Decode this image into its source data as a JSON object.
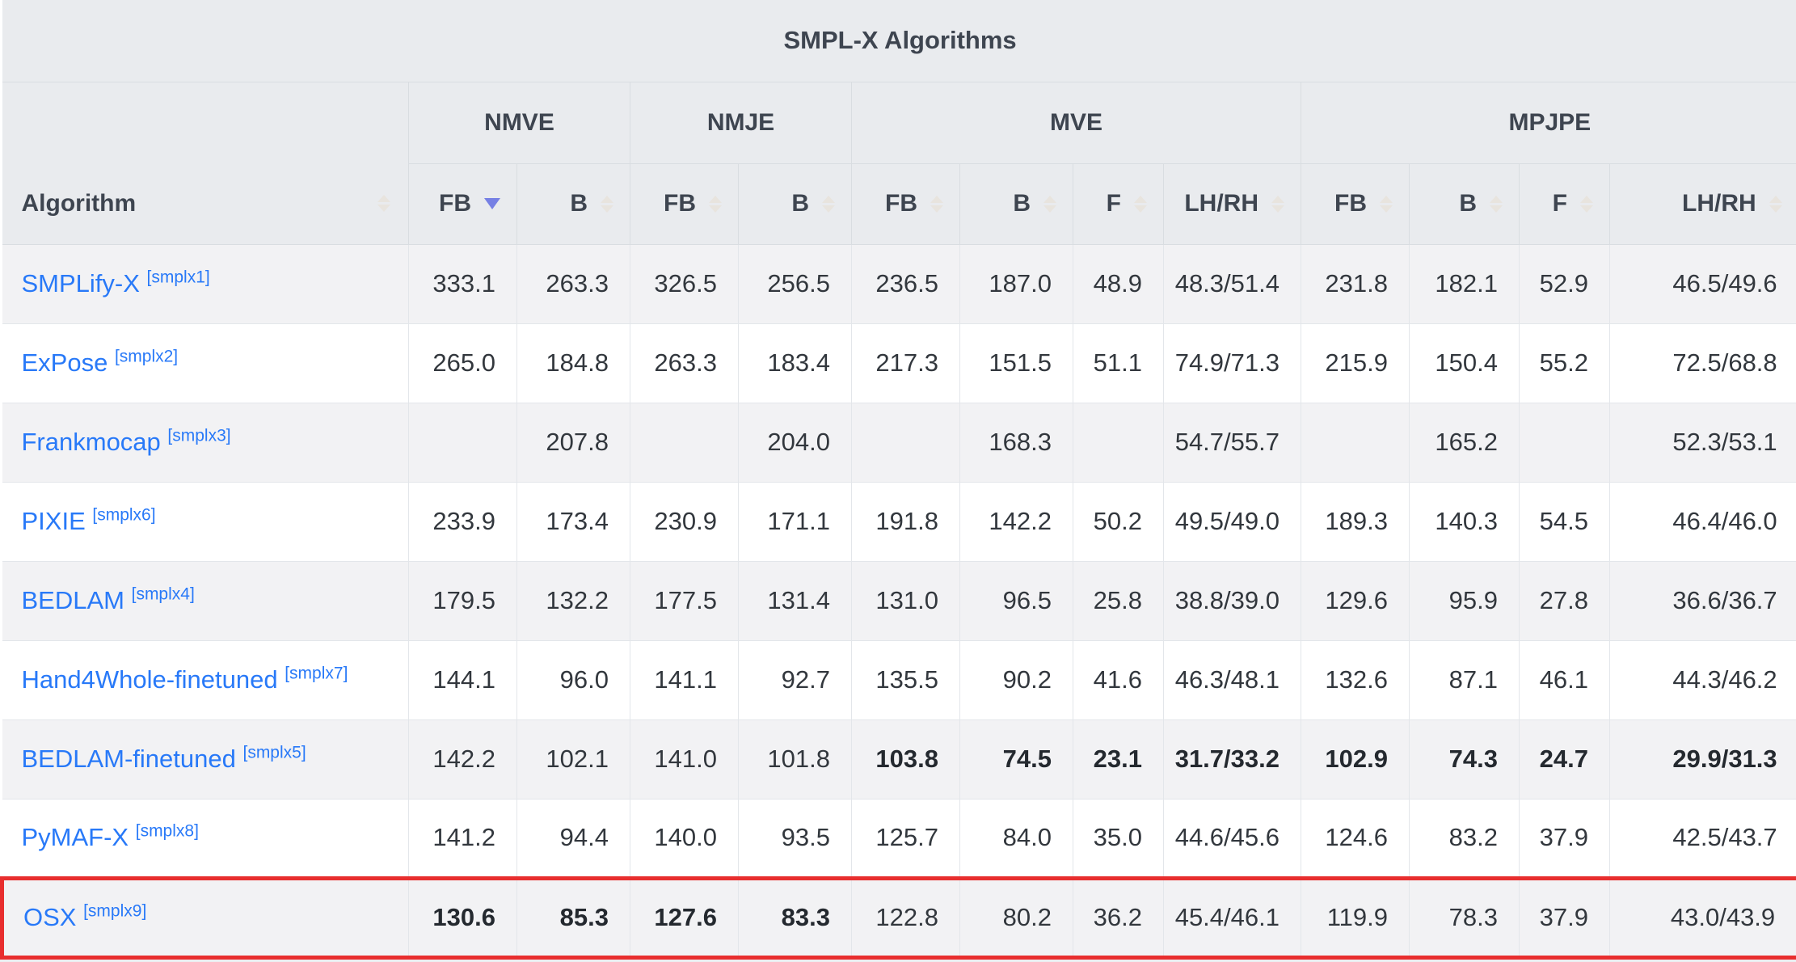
{
  "table": {
    "title": "SMPL-X Algorithms",
    "colors": {
      "header_bg": "#e9ebee",
      "row_odd_bg": "#f2f2f4",
      "row_even_bg": "#ffffff",
      "link_blue": "#2879f8",
      "sort_active": "#7680e4",
      "sort_inactive": "#e8e4de",
      "highlight_red": "#e82e2e"
    },
    "algorithm_header": {
      "label": "Algorithm"
    },
    "groups": [
      {
        "label": "NMVE",
        "span": 2
      },
      {
        "label": "NMJE",
        "span": 2
      },
      {
        "label": "MVE",
        "span": 4
      },
      {
        "label": "MPJPE",
        "span": 4
      }
    ],
    "columns": [
      {
        "group": "NMVE",
        "label": "FB",
        "sort": "desc"
      },
      {
        "group": "NMVE",
        "label": "B",
        "sort": "none"
      },
      {
        "group": "NMJE",
        "label": "FB",
        "sort": "none"
      },
      {
        "group": "NMJE",
        "label": "B",
        "sort": "none"
      },
      {
        "group": "MVE",
        "label": "FB",
        "sort": "none"
      },
      {
        "group": "MVE",
        "label": "B",
        "sort": "none"
      },
      {
        "group": "MVE",
        "label": "F",
        "sort": "none"
      },
      {
        "group": "MVE",
        "label": "LH/RH",
        "sort": "none"
      },
      {
        "group": "MPJPE",
        "label": "FB",
        "sort": "none"
      },
      {
        "group": "MPJPE",
        "label": "B",
        "sort": "none"
      },
      {
        "group": "MPJPE",
        "label": "F",
        "sort": "none"
      },
      {
        "group": "MPJPE",
        "label": "LH/RH",
        "sort": "none"
      }
    ],
    "rows": [
      {
        "name": "SMPLify-X",
        "cite": "[smplx1]",
        "highlight": false,
        "bold": [],
        "values": [
          "333.1",
          "263.3",
          "326.5",
          "256.5",
          "236.5",
          "187.0",
          "48.9",
          "48.3/51.4",
          "231.8",
          "182.1",
          "52.9",
          "46.5/49.6"
        ]
      },
      {
        "name": "ExPose",
        "cite": "[smplx2]",
        "highlight": false,
        "bold": [],
        "values": [
          "265.0",
          "184.8",
          "263.3",
          "183.4",
          "217.3",
          "151.5",
          "51.1",
          "74.9/71.3",
          "215.9",
          "150.4",
          "55.2",
          "72.5/68.8"
        ]
      },
      {
        "name": "Frankmocap",
        "cite": "[smplx3]",
        "highlight": false,
        "bold": [],
        "values": [
          "",
          "207.8",
          "",
          "204.0",
          "",
          "168.3",
          "",
          "54.7/55.7",
          "",
          "165.2",
          "",
          "52.3/53.1"
        ]
      },
      {
        "name": "PIXIE",
        "cite": "[smplx6]",
        "highlight": false,
        "bold": [],
        "values": [
          "233.9",
          "173.4",
          "230.9",
          "171.1",
          "191.8",
          "142.2",
          "50.2",
          "49.5/49.0",
          "189.3",
          "140.3",
          "54.5",
          "46.4/46.0"
        ]
      },
      {
        "name": "BEDLAM",
        "cite": "[smplx4]",
        "highlight": false,
        "bold": [],
        "values": [
          "179.5",
          "132.2",
          "177.5",
          "131.4",
          "131.0",
          "96.5",
          "25.8",
          "38.8/39.0",
          "129.6",
          "95.9",
          "27.8",
          "36.6/36.7"
        ]
      },
      {
        "name": "Hand4Whole-finetuned",
        "cite": "[smplx7]",
        "highlight": false,
        "bold": [],
        "values": [
          "144.1",
          "96.0",
          "141.1",
          "92.7",
          "135.5",
          "90.2",
          "41.6",
          "46.3/48.1",
          "132.6",
          "87.1",
          "46.1",
          "44.3/46.2"
        ]
      },
      {
        "name": "BEDLAM-finetuned",
        "cite": "[smplx5]",
        "highlight": false,
        "bold": [
          4,
          5,
          6,
          7,
          8,
          9,
          10,
          11
        ],
        "values": [
          "142.2",
          "102.1",
          "141.0",
          "101.8",
          "103.8",
          "74.5",
          "23.1",
          "31.7/33.2",
          "102.9",
          "74.3",
          "24.7",
          "29.9/31.3"
        ]
      },
      {
        "name": "PyMAF-X",
        "cite": "[smplx8]",
        "highlight": false,
        "bold": [],
        "values": [
          "141.2",
          "94.4",
          "140.0",
          "93.5",
          "125.7",
          "84.0",
          "35.0",
          "44.6/45.6",
          "124.6",
          "83.2",
          "37.9",
          "42.5/43.7"
        ]
      },
      {
        "name": "OSX",
        "cite": "[smplx9]",
        "highlight": true,
        "bold": [
          0,
          1,
          2,
          3
        ],
        "values": [
          "130.6",
          "85.3",
          "127.6",
          "83.3",
          "122.8",
          "80.2",
          "36.2",
          "45.4/46.1",
          "119.9",
          "78.3",
          "37.9",
          "43.0/43.9"
        ]
      }
    ]
  }
}
